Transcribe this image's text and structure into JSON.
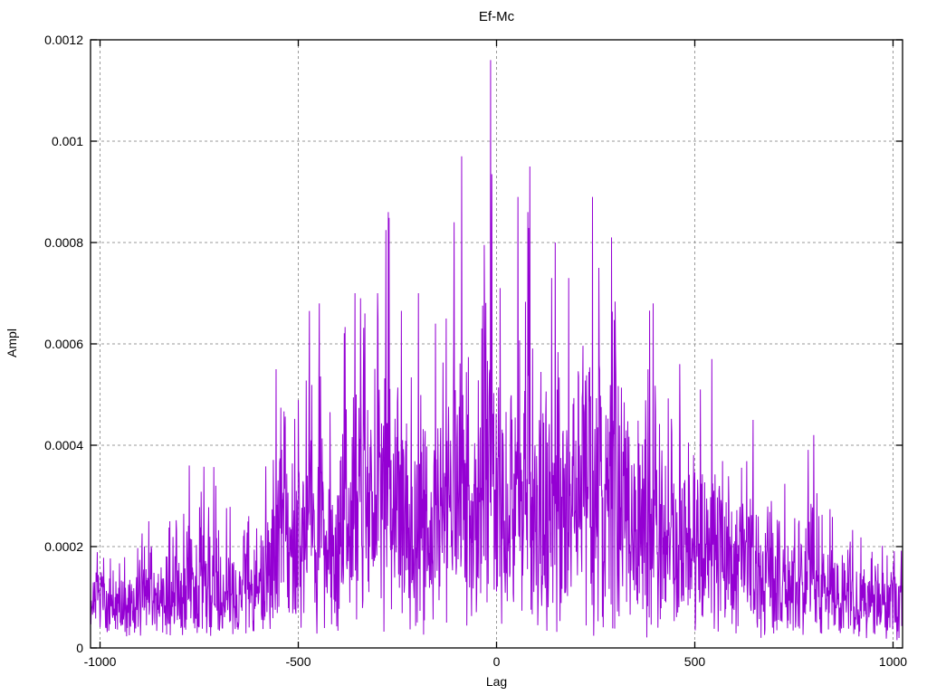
{
  "chart_data": {
    "type": "line",
    "description": "Dense noisy cross-correlation magnitude vs lag, drawn as near-vertical purple spikes",
    "title": "Ef-Mc",
    "xlabel": "Lag",
    "ylabel": "Ampl",
    "x_range": [
      -1024,
      1024
    ],
    "y_range": [
      0,
      0.0012
    ],
    "x_ticks": [
      {
        "value": -1000,
        "label": "-1000"
      },
      {
        "value": -500,
        "label": "-500"
      },
      {
        "value": 0,
        "label": "0"
      },
      {
        "value": 500,
        "label": "500"
      },
      {
        "value": 1000,
        "label": "1000"
      }
    ],
    "y_ticks": [
      {
        "value": 0,
        "label": "0"
      },
      {
        "value": 0.0002,
        "label": "0.0002"
      },
      {
        "value": 0.0004,
        "label": "0.0004"
      },
      {
        "value": 0.0006,
        "label": "0.0006"
      },
      {
        "value": 0.0008,
        "label": "0.0008"
      },
      {
        "value": 0.001,
        "label": "0.001"
      },
      {
        "value": 0.0012,
        "label": "0.0012"
      }
    ],
    "grid": {
      "show": true,
      "color": "#9a9a9a",
      "dash": [
        3,
        3
      ]
    },
    "axis_color": "#000000",
    "bg_color": "#ffffff",
    "line_color": "#9400d3",
    "n_points": 2049,
    "envelope": [
      [
        -1024,
        0.00024
      ],
      [
        -960,
        0.00025
      ],
      [
        -900,
        0.00027
      ],
      [
        -860,
        0.00026
      ],
      [
        -820,
        0.00028
      ],
      [
        -775,
        0.00037
      ],
      [
        -740,
        0.00036
      ],
      [
        -700,
        0.00031
      ],
      [
        -650,
        0.00032
      ],
      [
        -600,
        0.00034
      ],
      [
        -556,
        0.00056
      ],
      [
        -520,
        0.0005
      ],
      [
        -500,
        0.00054
      ],
      [
        -472,
        0.00067
      ],
      [
        -447,
        0.00068
      ],
      [
        -420,
        0.00058
      ],
      [
        -390,
        0.00062
      ],
      [
        -357,
        0.00071
      ],
      [
        -330,
        0.00067
      ],
      [
        -300,
        0.0007
      ],
      [
        -273,
        0.00086
      ],
      [
        -245,
        0.0007
      ],
      [
        -220,
        0.00067
      ],
      [
        -197,
        0.00071
      ],
      [
        -170,
        0.00064
      ],
      [
        -150,
        0.00066
      ],
      [
        -127,
        0.00065
      ],
      [
        -107,
        0.00085
      ],
      [
        -88,
        0.00097
      ],
      [
        -65,
        0.00072
      ],
      [
        -40,
        0.00078
      ],
      [
        -15,
        0.00116
      ],
      [
        0,
        0.00072
      ],
      [
        20,
        0.0007
      ],
      [
        40,
        0.00075
      ],
      [
        54,
        0.0009
      ],
      [
        84,
        0.00096
      ],
      [
        110,
        0.00068
      ],
      [
        139,
        0.00073
      ],
      [
        148,
        0.00081
      ],
      [
        182,
        0.00073
      ],
      [
        210,
        0.00074
      ],
      [
        242,
        0.00089
      ],
      [
        265,
        0.00075
      ],
      [
        290,
        0.00081
      ],
      [
        320,
        0.0007
      ],
      [
        340,
        0.00068
      ],
      [
        370,
        0.00064
      ],
      [
        395,
        0.00068
      ],
      [
        430,
        0.00059
      ],
      [
        462,
        0.00057
      ],
      [
        490,
        0.0005
      ],
      [
        514,
        0.00051
      ],
      [
        543,
        0.00057
      ],
      [
        575,
        0.00048
      ],
      [
        600,
        0.00047
      ],
      [
        625,
        0.00043
      ],
      [
        647,
        0.00046
      ],
      [
        675,
        0.0004
      ],
      [
        700,
        0.00038
      ],
      [
        730,
        0.00035
      ],
      [
        760,
        0.00034
      ],
      [
        800,
        0.00042
      ],
      [
        830,
        0.00033
      ],
      [
        860,
        0.0003
      ],
      [
        900,
        0.00027
      ],
      [
        940,
        0.00028
      ],
      [
        975,
        0.00024
      ],
      [
        1000,
        0.00023
      ],
      [
        1024,
        0.00022
      ]
    ],
    "peaks": [
      [
        -877,
        0.00025
      ],
      [
        -824,
        0.00025
      ],
      [
        -775,
        0.00036
      ],
      [
        -713,
        0.000357
      ],
      [
        -625,
        0.00026
      ],
      [
        -556,
        0.00055
      ],
      [
        -472,
        0.000665
      ],
      [
        -447,
        0.00068
      ],
      [
        -357,
        0.0007
      ],
      [
        -343,
        0.00069
      ],
      [
        -332,
        0.00066
      ],
      [
        -273,
        0.00086
      ],
      [
        -197,
        0.0007
      ],
      [
        -154,
        0.00064
      ],
      [
        -127,
        0.00065
      ],
      [
        -107,
        0.00084
      ],
      [
        -88,
        0.00097
      ],
      [
        -15,
        0.00116
      ],
      [
        9,
        0.00071
      ],
      [
        54,
        0.00089
      ],
      [
        79,
        0.00086
      ],
      [
        84,
        0.00095
      ],
      [
        139,
        0.00073
      ],
      [
        148,
        0.0008
      ],
      [
        182,
        0.00073
      ],
      [
        242,
        0.00089
      ],
      [
        258,
        0.00075
      ],
      [
        290,
        0.00081
      ],
      [
        395,
        0.00068
      ],
      [
        462,
        0.00056
      ],
      [
        514,
        0.00051
      ],
      [
        543,
        0.00057
      ],
      [
        647,
        0.00045
      ],
      [
        800,
        0.00042
      ]
    ],
    "noise_model": {
      "distribution": "rayleigh",
      "sigma_ratio": 0.3,
      "floor": 3e-05,
      "seed": 1337
    }
  }
}
